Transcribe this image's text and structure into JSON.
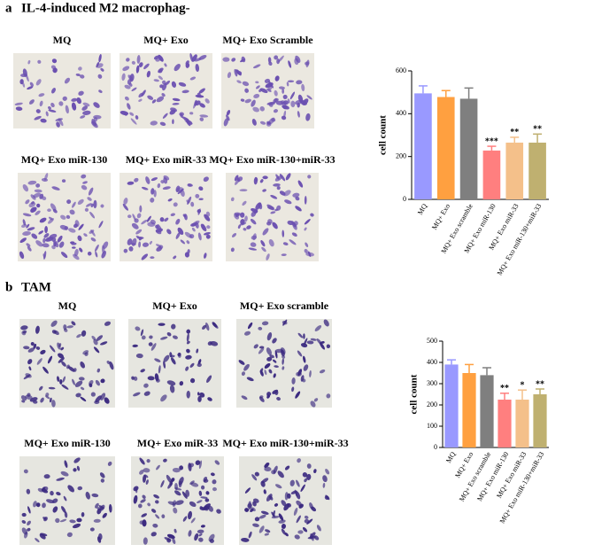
{
  "panels": [
    {
      "label": "a",
      "title": "IL-4-induced M2 macrophag-",
      "images": [
        "MQ",
        "MQ+ Exo",
        "MQ+ Exo Scramble",
        "MQ+ Exo miR-130",
        "MQ+ Exo miR-33",
        "MQ+ Exo miR-130+miR-33"
      ]
    },
    {
      "label": "b",
      "title": "TAM",
      "images": [
        "MQ",
        "MQ+ Exo",
        "MQ+ Exo scramble",
        "MQ+ Exo miR-130",
        "MQ+ Exo miR-33",
        "MQ+ Exo miR-130+miR-33"
      ]
    }
  ],
  "chart_data": [
    {
      "type": "bar",
      "ylabel": "cell count",
      "categories": [
        "MQ",
        "MQ+ Exo",
        "MQ+ Exo scramble",
        "MQ+ Exo miR-130",
        "MQ+ Exo miR-33",
        "MQ+ Exo miR-130+miR-33"
      ],
      "values": [
        495,
        478,
        470,
        228,
        265,
        265
      ],
      "errors": [
        35,
        30,
        50,
        20,
        25,
        40
      ],
      "significance": [
        null,
        null,
        null,
        "***",
        "**",
        "**"
      ],
      "colors": [
        "#9999ff",
        "#ffa040",
        "#7f7f7f",
        "#ff7f7f",
        "#f4c08a",
        "#bfb070"
      ],
      "ylim": [
        0,
        600
      ],
      "yticks": [
        0,
        200,
        400,
        600
      ]
    },
    {
      "type": "bar",
      "ylabel": "cell count",
      "categories": [
        "MQ",
        "MQ+ Exo",
        "MQ+ Exo scramble",
        "MQ+ Exo miR-130",
        "MQ+ Exo miR-33",
        "MQ+ Exo miR-130+miR-33"
      ],
      "values": [
        390,
        350,
        340,
        225,
        225,
        250
      ],
      "errors": [
        22,
        40,
        35,
        30,
        45,
        25
      ],
      "significance": [
        null,
        null,
        null,
        "**",
        "*",
        "**"
      ],
      "colors": [
        "#9999ff",
        "#ffa040",
        "#7f7f7f",
        "#ff7f7f",
        "#f4c08a",
        "#bfb070"
      ],
      "ylim": [
        0,
        500
      ],
      "yticks": [
        0,
        100,
        200,
        300,
        400,
        500
      ]
    }
  ]
}
